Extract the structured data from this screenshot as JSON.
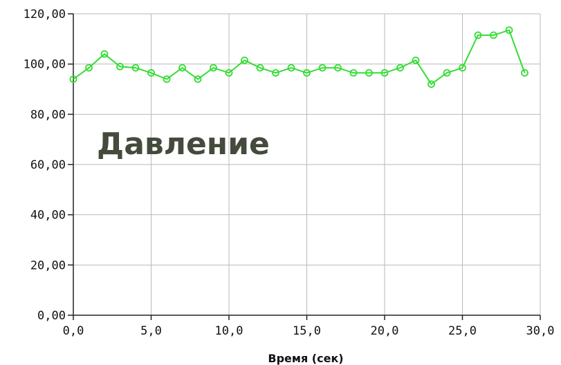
{
  "chart_data": {
    "type": "line",
    "overlay_label": "Давление",
    "xlabel": "Время (сек)",
    "ylabel": "",
    "xlim": [
      0,
      30
    ],
    "ylim": [
      0,
      120
    ],
    "x_ticks": [
      "0,0",
      "5,0",
      "10,0",
      "15,0",
      "20,0",
      "25,0",
      "30,0"
    ],
    "y_ticks": [
      "0,00",
      "20,00",
      "40,00",
      "60,00",
      "80,00",
      "100,00",
      "120,00"
    ],
    "grid": true,
    "series": [
      {
        "color": "#33dd33",
        "x": [
          0,
          1,
          2,
          3,
          4,
          5,
          6,
          7,
          8,
          9,
          10,
          11,
          12,
          13,
          14,
          15,
          16,
          17,
          18,
          19,
          20,
          21,
          22,
          23,
          24,
          25,
          26,
          27,
          28,
          29
        ],
        "values": [
          94,
          98.5,
          104,
          99,
          98.5,
          96.5,
          94,
          98.5,
          94,
          98.5,
          96.5,
          101.5,
          98.5,
          96.5,
          98.5,
          96.5,
          98.5,
          98.5,
          96.5,
          96.5,
          96.5,
          98.5,
          101.5,
          92,
          96.5,
          98.5,
          111.5,
          111.5,
          113.5,
          96.5
        ]
      }
    ]
  }
}
